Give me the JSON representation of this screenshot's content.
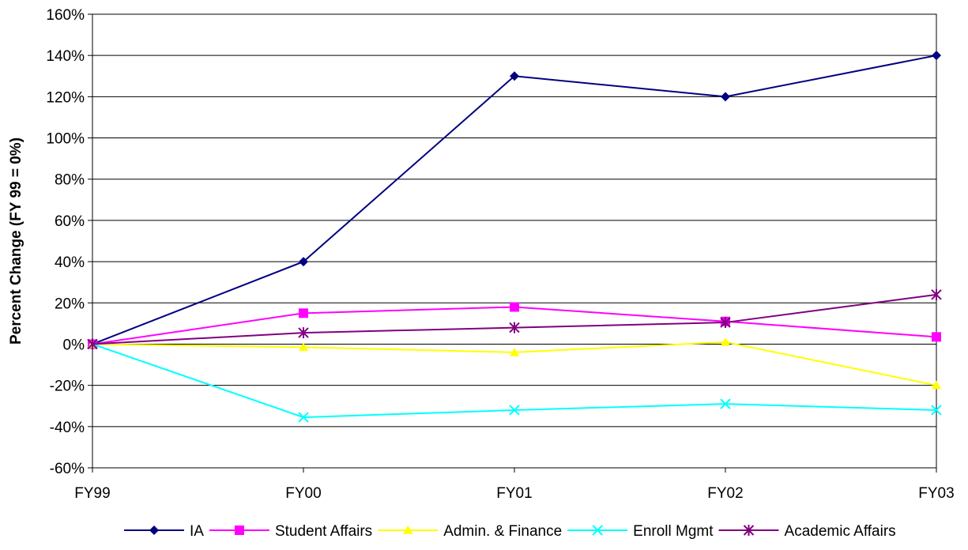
{
  "chart_data": {
    "type": "line",
    "title": "",
    "xlabel": "",
    "ylabel": "Percent Change (FY 99 = 0%)",
    "categories": [
      "FY99",
      "FY00",
      "FY01",
      "FY02",
      "FY03"
    ],
    "y_ticks": [
      "160%",
      "140%",
      "120%",
      "100%",
      "80%",
      "60%",
      "40%",
      "20%",
      "0%",
      "-20%",
      "-40%",
      "-60%"
    ],
    "ylim": [
      -60,
      160
    ],
    "grid": true,
    "legend_position": "bottom",
    "series": [
      {
        "name": "IA",
        "values": [
          0,
          40,
          130,
          120,
          140
        ],
        "color": "#000080",
        "marker": "diamond"
      },
      {
        "name": "Student Affairs",
        "values": [
          0,
          15,
          18,
          11,
          3.5
        ],
        "color": "#FF00FF",
        "marker": "square"
      },
      {
        "name": "Admin. & Finance",
        "values": [
          0,
          -1.5,
          -4,
          1,
          -20
        ],
        "color": "#FFFF00",
        "marker": "triangle"
      },
      {
        "name": "Enroll Mgmt",
        "values": [
          0,
          -35.5,
          -32,
          -29,
          -32
        ],
        "color": "#00FFFF",
        "marker": "x"
      },
      {
        "name": "Academic Affairs",
        "values": [
          0,
          5.5,
          8,
          10.5,
          24
        ],
        "color": "#800080",
        "marker": "star"
      }
    ]
  }
}
